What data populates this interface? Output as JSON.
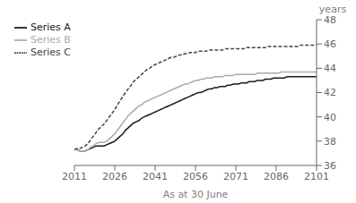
{
  "chart_data": {
    "type": "line",
    "xlabel": "As at 30 June",
    "ylabel": "years",
    "x": [
      2011,
      2012,
      2013,
      2014,
      2015,
      2016,
      2017,
      2018,
      2019,
      2020,
      2021,
      2022,
      2023,
      2024,
      2025,
      2026,
      2027,
      2028,
      2029,
      2030,
      2031,
      2032,
      2033,
      2034,
      2035,
      2036,
      2037,
      2038,
      2039,
      2040,
      2041,
      2042,
      2043,
      2044,
      2045,
      2046,
      2047,
      2048,
      2049,
      2050,
      2051,
      2052,
      2053,
      2054,
      2055,
      2056,
      2057,
      2058,
      2059,
      2060,
      2061,
      2062,
      2063,
      2064,
      2065,
      2066,
      2067,
      2068,
      2069,
      2070,
      2071,
      2072,
      2073,
      2074,
      2075,
      2076,
      2077,
      2078,
      2079,
      2080,
      2081,
      2082,
      2083,
      2084,
      2085,
      2086,
      2087,
      2088,
      2089,
      2090,
      2091,
      2092,
      2093,
      2094,
      2095,
      2096,
      2097,
      2098,
      2099,
      2100,
      2101
    ],
    "series": [
      {
        "name": "Series A",
        "color": "#1a1a1a",
        "line_style": "solid",
        "values": [
          37.3,
          37.3,
          37.2,
          37.2,
          37.2,
          37.3,
          37.4,
          37.5,
          37.6,
          37.6,
          37.6,
          37.6,
          37.7,
          37.8,
          37.9,
          38.0,
          38.2,
          38.4,
          38.6,
          38.9,
          39.1,
          39.3,
          39.5,
          39.6,
          39.7,
          39.9,
          40.0,
          40.1,
          40.2,
          40.3,
          40.4,
          40.5,
          40.6,
          40.7,
          40.8,
          40.9,
          41.0,
          41.1,
          41.2,
          41.3,
          41.4,
          41.5,
          41.6,
          41.7,
          41.8,
          41.9,
          42.0,
          42.0,
          42.1,
          42.2,
          42.3,
          42.3,
          42.4,
          42.4,
          42.5,
          42.5,
          42.5,
          42.6,
          42.6,
          42.7,
          42.7,
          42.7,
          42.8,
          42.8,
          42.8,
          42.9,
          42.9,
          42.9,
          43.0,
          43.0,
          43.0,
          43.1,
          43.1,
          43.1,
          43.2,
          43.2,
          43.2,
          43.2,
          43.2,
          43.3,
          43.3,
          43.3,
          43.3,
          43.3,
          43.3,
          43.3,
          43.3,
          43.3,
          43.3,
          43.3,
          43.3
        ]
      },
      {
        "name": "Series B",
        "color": "#aaaaaa",
        "line_style": "solid",
        "values": [
          37.3,
          37.3,
          37.2,
          37.2,
          37.2,
          37.3,
          37.5,
          37.6,
          37.8,
          37.9,
          37.9,
          37.9,
          38.0,
          38.2,
          38.4,
          38.6,
          38.9,
          39.2,
          39.5,
          39.8,
          40.1,
          40.3,
          40.5,
          40.7,
          40.9,
          41.0,
          41.2,
          41.3,
          41.4,
          41.5,
          41.6,
          41.7,
          41.8,
          41.9,
          42.0,
          42.1,
          42.2,
          42.3,
          42.4,
          42.5,
          42.6,
          42.7,
          42.7,
          42.8,
          42.9,
          43.0,
          43.0,
          43.1,
          43.1,
          43.2,
          43.2,
          43.2,
          43.3,
          43.3,
          43.3,
          43.3,
          43.4,
          43.4,
          43.4,
          43.4,
          43.5,
          43.5,
          43.5,
          43.5,
          43.5,
          43.5,
          43.5,
          43.5,
          43.6,
          43.6,
          43.6,
          43.6,
          43.6,
          43.6,
          43.6,
          43.6,
          43.6,
          43.7,
          43.7,
          43.7,
          43.7,
          43.7,
          43.7,
          43.7,
          43.7,
          43.7,
          43.7,
          43.7,
          43.7,
          43.7,
          43.7
        ]
      },
      {
        "name": "Series C",
        "color": "#444444",
        "line_style": "dashed",
        "values": [
          37.3,
          37.4,
          37.4,
          37.5,
          37.6,
          37.8,
          38.1,
          38.4,
          38.7,
          39.0,
          39.2,
          39.4,
          39.7,
          40.0,
          40.3,
          40.6,
          41.0,
          41.3,
          41.7,
          42.0,
          42.3,
          42.6,
          42.9,
          43.1,
          43.3,
          43.5,
          43.7,
          43.9,
          44.0,
          44.2,
          44.3,
          44.4,
          44.5,
          44.6,
          44.7,
          44.8,
          44.9,
          44.9,
          45.0,
          45.1,
          45.1,
          45.2,
          45.2,
          45.3,
          45.3,
          45.3,
          45.4,
          45.4,
          45.4,
          45.4,
          45.5,
          45.5,
          45.5,
          45.5,
          45.5,
          45.5,
          45.6,
          45.6,
          45.6,
          45.6,
          45.6,
          45.6,
          45.6,
          45.6,
          45.7,
          45.7,
          45.7,
          45.7,
          45.7,
          45.7,
          45.7,
          45.7,
          45.8,
          45.8,
          45.8,
          45.8,
          45.8,
          45.8,
          45.8,
          45.8,
          45.8,
          45.8,
          45.8,
          45.8,
          45.9,
          45.9,
          45.9,
          45.9,
          45.9,
          45.9,
          45.9
        ]
      }
    ],
    "xlim": [
      2011,
      2101
    ],
    "xticks": [
      2011,
      2026,
      2041,
      2056,
      2071,
      2086,
      2101
    ],
    "ylim": [
      36,
      48
    ],
    "yticks": [
      36,
      38,
      40,
      42,
      44,
      46,
      48
    ],
    "grid": false,
    "legend": "upper left"
  }
}
